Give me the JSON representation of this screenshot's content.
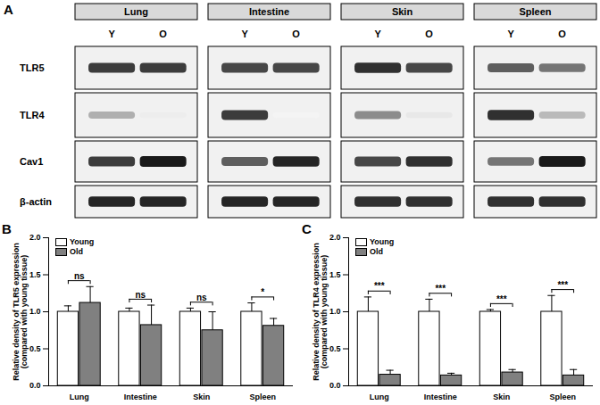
{
  "blot": {
    "panel": "A",
    "tissues": [
      "Lung",
      "Intestine",
      "Skin",
      "Spleen"
    ],
    "lanes": [
      "Y",
      "O"
    ],
    "proteins": [
      "TLR5",
      "TLR4",
      "Cav1",
      "β-actin"
    ],
    "band_darkness": [
      [
        [
          0.85,
          0.85
        ],
        [
          0.35,
          0.08
        ],
        [
          0.85,
          1.0
        ],
        [
          0.95,
          0.95
        ]
      ],
      [
        [
          0.8,
          0.8
        ],
        [
          0.85,
          0.05
        ],
        [
          0.7,
          0.95
        ],
        [
          0.95,
          0.95
        ]
      ],
      [
        [
          0.9,
          0.8
        ],
        [
          0.5,
          0.1
        ],
        [
          0.8,
          0.9
        ],
        [
          0.9,
          0.9
        ]
      ],
      [
        [
          0.7,
          0.6
        ],
        [
          0.9,
          0.3
        ],
        [
          0.6,
          1.0
        ],
        [
          0.9,
          0.9
        ]
      ]
    ]
  },
  "chart_data": [
    {
      "type": "bar",
      "panel": "B",
      "categories": [
        "Lung",
        "Intestine",
        "Skin",
        "Spleen"
      ],
      "series": [
        {
          "name": "Young",
          "color": "#ffffff",
          "values": [
            1.0,
            1.0,
            1.0,
            1.0
          ],
          "errors": [
            0.08,
            0.05,
            0.05,
            0.12
          ]
        },
        {
          "name": "Old",
          "color": "#808080",
          "values": [
            1.12,
            0.82,
            0.75,
            0.81
          ],
          "errors": [
            0.22,
            0.27,
            0.25,
            0.1
          ]
        }
      ],
      "significance": [
        "ns",
        "ns",
        "ns",
        "*"
      ],
      "y_label": "Relative density of TLR5 expression\n(compared with young tissue)",
      "ylim": [
        0,
        2
      ],
      "yticks": [
        {
          "value": 0,
          "label": "0.0"
        },
        {
          "value": 0.5,
          "label": "0.5"
        },
        {
          "value": 1,
          "label": "1.0"
        },
        {
          "value": 1.5,
          "label": "1.5"
        },
        {
          "value": 2,
          "label": "2.0"
        }
      ],
      "legend": "top-left"
    },
    {
      "type": "bar",
      "panel": "C",
      "categories": [
        "Lung",
        "Intestine",
        "Skin",
        "Spleen"
      ],
      "series": [
        {
          "name": "Young",
          "color": "#ffffff",
          "values": [
            1.0,
            1.0,
            1.0,
            1.0
          ],
          "errors": [
            0.2,
            0.17,
            0.03,
            0.22
          ]
        },
        {
          "name": "Old",
          "color": "#808080",
          "values": [
            0.15,
            0.14,
            0.18,
            0.14
          ],
          "errors": [
            0.06,
            0.03,
            0.04,
            0.08
          ]
        }
      ],
      "significance": [
        "***",
        "***",
        "***",
        "***"
      ],
      "y_label": "Relative density of TLR4 expression\n(compared with young tissue)",
      "ylim": [
        0,
        2
      ],
      "yticks": [
        {
          "value": 0,
          "label": "0.0"
        },
        {
          "value": 0.5,
          "label": "0.5"
        },
        {
          "value": 1,
          "label": "1.0"
        },
        {
          "value": 1.5,
          "label": "1.5"
        },
        {
          "value": 2,
          "label": "2.0"
        }
      ],
      "legend": "top-left"
    }
  ]
}
